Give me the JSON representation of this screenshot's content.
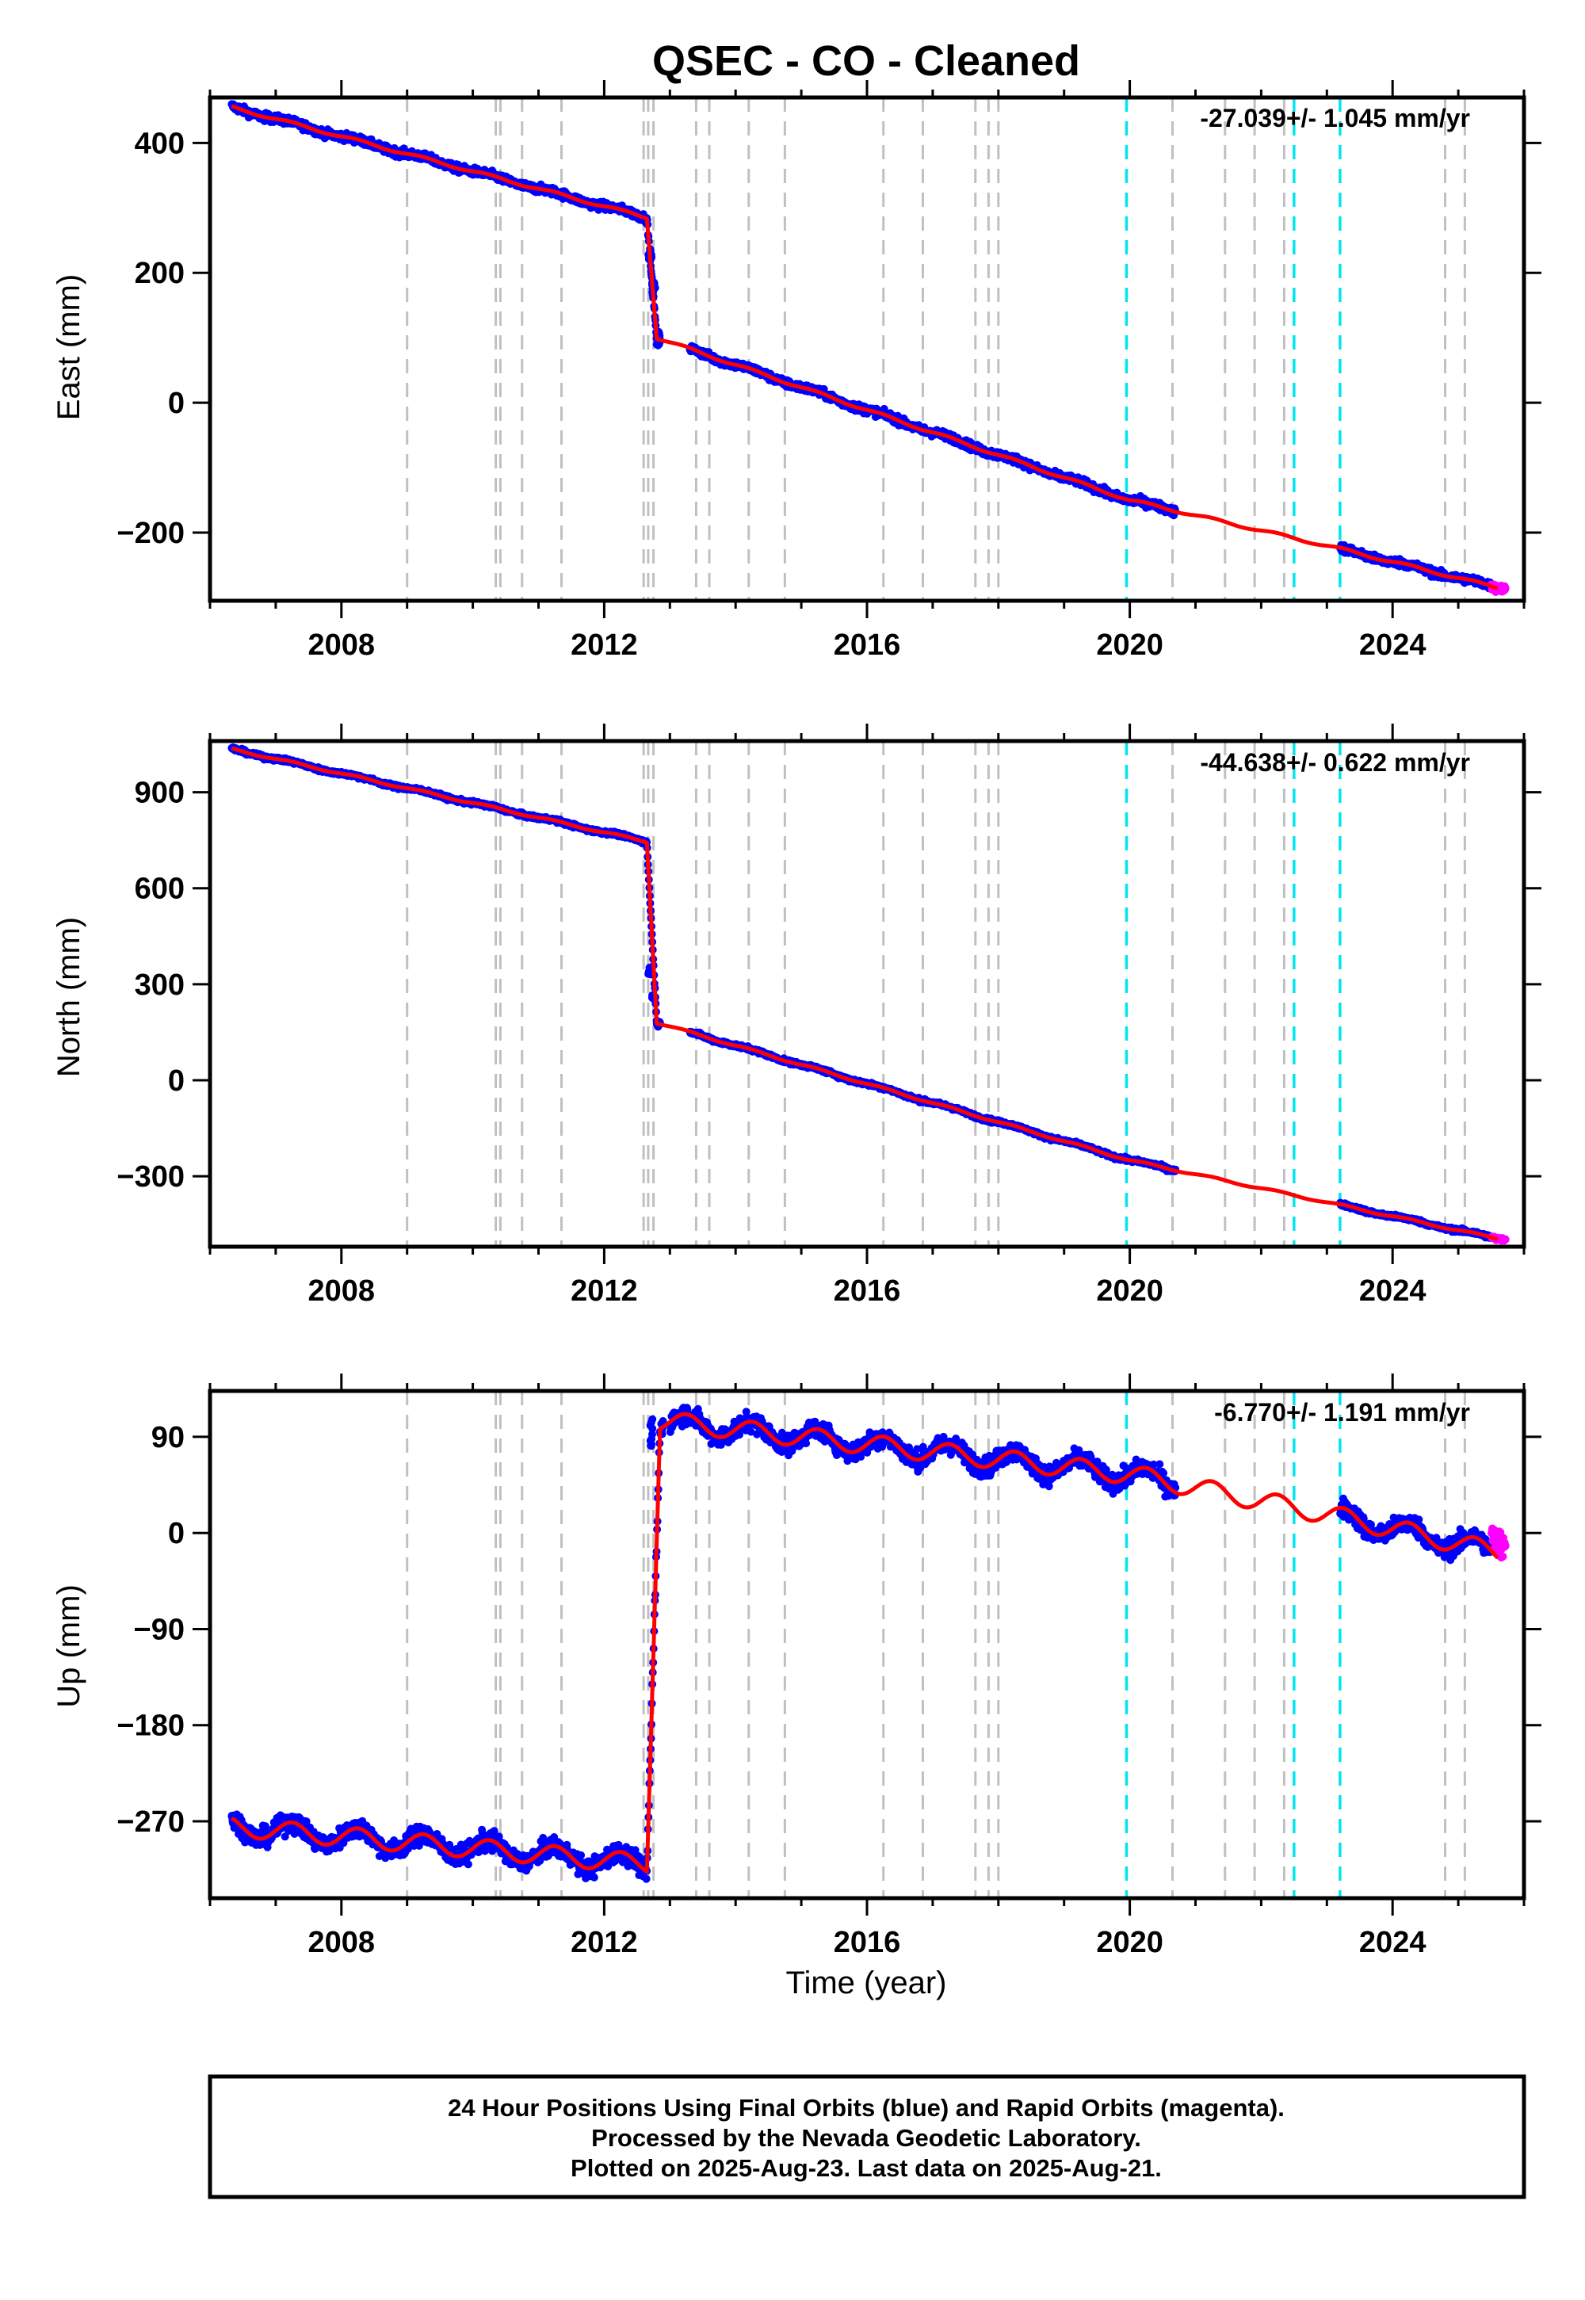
{
  "title": "QSEC  - CO - Cleaned",
  "chart_data": [
    {
      "type": "scatter",
      "ylabel": "East (mm)",
      "xlabel": "",
      "rate": "-27.039+/- 1.045 mm/yr",
      "xlim": [
        2006.0,
        2026.0
      ],
      "ylim": [
        -305,
        470
      ],
      "x_ticks": [
        "2008",
        "2012",
        "2016",
        "2020",
        "2024"
      ],
      "y_ticks": [
        "400",
        "200",
        "0",
        "−200"
      ],
      "y_tick_values": [
        400,
        200,
        0,
        -200
      ],
      "gaps": [
        [
          2012.85,
          2013.3
        ],
        [
          2020.7,
          2023.2
        ]
      ],
      "steps": [
        {
          "x": 2012.67,
          "to": 225
        },
        {
          "x": 2012.73,
          "to": 180
        },
        {
          "x": 2012.8,
          "to": 100
        }
      ],
      "final_model": {
        "x": [
          2006.33,
          2012.65,
          2012.8,
          2020.0,
          2023.2,
          2025.6
        ],
        "y": [
          455,
          285,
          100,
          -150,
          -225,
          -285
        ]
      },
      "seasonal_amp": 2,
      "noise": 6,
      "rapid_x": [
        2025.5,
        2025.6
      ],
      "series": [
        {
          "name": "Final Orbits",
          "color": "#0000ff"
        },
        {
          "name": "Rapid Orbits",
          "color": "#ff00ff"
        }
      ]
    },
    {
      "type": "scatter",
      "ylabel": "North (mm)",
      "xlabel": "",
      "rate": "-44.638+/- 0.622 mm/yr",
      "xlim": [
        2006.0,
        2026.0
      ],
      "ylim": [
        -520,
        1060
      ],
      "x_ticks": [
        "2008",
        "2012",
        "2016",
        "2020",
        "2024"
      ],
      "y_ticks": [
        "900",
        "600",
        "300",
        "0",
        "−300"
      ],
      "y_tick_values": [
        900,
        600,
        300,
        0,
        -300
      ],
      "gaps": [
        [
          2012.85,
          2013.3
        ],
        [
          2020.7,
          2023.2
        ]
      ],
      "steps": [
        {
          "x": 2012.67,
          "to": 340
        },
        {
          "x": 2012.73,
          "to": 260
        },
        {
          "x": 2012.8,
          "to": 180
        }
      ],
      "final_model": {
        "x": [
          2006.33,
          2012.65,
          2012.8,
          2020.0,
          2023.2,
          2025.6
        ],
        "y": [
          1035,
          745,
          180,
          -250,
          -390,
          -495
        ]
      },
      "seasonal_amp": 3,
      "noise": 6,
      "rapid_x": [
        2025.5,
        2025.6
      ],
      "series": [
        {
          "name": "Final Orbits",
          "color": "#0000ff"
        },
        {
          "name": "Rapid Orbits",
          "color": "#ff00ff"
        }
      ]
    },
    {
      "type": "scatter",
      "ylabel": "Up (mm)",
      "xlabel": "Time (year)",
      "rate": "-6.770+/- 1.191 mm/yr",
      "xlim": [
        2006.0,
        2026.0
      ],
      "ylim": [
        -342,
        133
      ],
      "x_ticks": [
        "2008",
        "2012",
        "2016",
        "2020",
        "2024"
      ],
      "y_ticks": [
        "90",
        "0",
        "−90",
        "−180",
        "−270"
      ],
      "y_tick_values": [
        90,
        0,
        -90,
        -180,
        -270
      ],
      "gaps": [
        [
          2012.9,
          2013.0
        ],
        [
          2020.7,
          2023.2
        ]
      ],
      "steps": [
        {
          "x": 2012.7,
          "to": 90
        }
      ],
      "final_model": {
        "x": [
          2006.33,
          2012.65,
          2012.85,
          2020.0,
          2023.2,
          2025.6
        ],
        "y": [
          -275,
          -310,
          105,
          55,
          15,
          -18
        ]
      },
      "seasonal_amp": 9,
      "noise": 9,
      "rapid_x": [
        2025.5,
        2025.6
      ],
      "series": [
        {
          "name": "Final Orbits",
          "color": "#0000ff"
        },
        {
          "name": "Rapid Orbits",
          "color": "#ff00ff"
        }
      ]
    }
  ],
  "grey_breaks": [
    2009.0,
    2010.35,
    2010.42,
    2010.75,
    2011.35,
    2012.6,
    2012.67,
    2012.75,
    2013.4,
    2013.6,
    2014.2,
    2014.75,
    2016.25,
    2016.85,
    2017.65,
    2017.85,
    2018.0,
    2020.65,
    2021.45,
    2021.9,
    2022.35,
    2024.8,
    2025.1
  ],
  "cyan_breaks": [
    2019.95,
    2022.5,
    2023.2
  ],
  "grey_color": "#c0c0c0",
  "cyan_color": "#00e5ee",
  "model_color": "#ff0000",
  "footer": {
    "line1": "24 Hour Positions Using Final Orbits (blue) and Rapid Orbits (magenta).",
    "line2": "Processed by the Nevada Geodetic Laboratory.",
    "line3": "Plotted on 2025-Aug-23. Last data on 2025-Aug-21."
  }
}
